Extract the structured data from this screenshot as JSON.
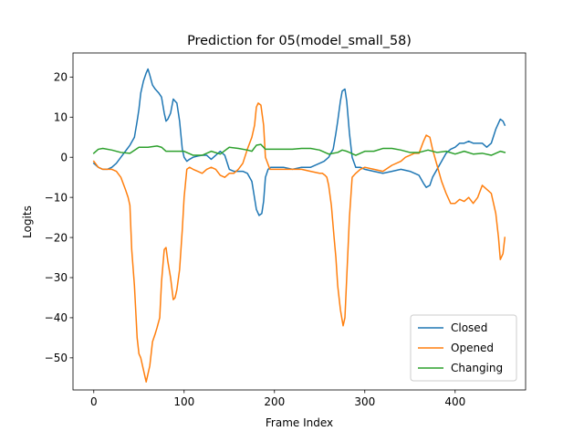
{
  "chart_data": {
    "type": "line",
    "title": "Prediction for 05(model_small_58)",
    "xlabel": "Frame Index",
    "ylabel": "Logits",
    "xlim": [
      -23,
      478
    ],
    "ylim": [
      -58,
      26
    ],
    "xticks": [
      0,
      100,
      200,
      300,
      400
    ],
    "yticks": [
      -50,
      -40,
      -30,
      -20,
      -10,
      0,
      10,
      20
    ],
    "grid": false,
    "legend": "lower-right",
    "series": [
      {
        "name": "Closed",
        "color": "#1f77b4",
        "x": [
          0,
          5,
          10,
          15,
          20,
          25,
          30,
          35,
          40,
          45,
          48,
          50,
          52,
          55,
          58,
          60,
          62,
          65,
          68,
          70,
          72,
          75,
          78,
          80,
          82,
          85,
          88,
          90,
          92,
          95,
          98,
          100,
          103,
          106,
          110,
          115,
          120,
          125,
          130,
          135,
          140,
          145,
          150,
          155,
          160,
          165,
          170,
          175,
          180,
          183,
          186,
          188,
          190,
          193,
          196,
          200,
          210,
          220,
          230,
          240,
          250,
          255,
          260,
          265,
          268,
          270,
          273,
          275,
          278,
          280,
          283,
          286,
          290,
          295,
          300,
          310,
          320,
          330,
          340,
          350,
          360,
          365,
          368,
          372,
          375,
          380,
          385,
          390,
          395,
          400,
          405,
          410,
          415,
          420,
          425,
          430,
          435,
          440,
          445,
          450,
          453,
          455
        ],
        "y": [
          -1.5,
          -2.5,
          -3,
          -3,
          -2.5,
          -1.5,
          0,
          1.5,
          3,
          5,
          9,
          12,
          16,
          19,
          21,
          22,
          20.5,
          18,
          17,
          16.5,
          16,
          15,
          11,
          9,
          9.5,
          11,
          14.5,
          14,
          13.5,
          9,
          2,
          0,
          -1,
          -0.5,
          0,
          0.3,
          0.5,
          0.5,
          -0.5,
          0.5,
          1.5,
          0.5,
          -3,
          -3.5,
          -3.5,
          -3.5,
          -4,
          -6,
          -13,
          -14.5,
          -14,
          -11,
          -5,
          -3,
          -2.5,
          -2.5,
          -2.5,
          -3,
          -2.5,
          -2.5,
          -1.5,
          -1,
          0,
          2,
          6,
          9,
          14,
          16.5,
          17,
          14,
          6,
          0,
          -2.5,
          -2.5,
          -3,
          -3.5,
          -4,
          -3.5,
          -3,
          -3.5,
          -4.5,
          -6.5,
          -7.5,
          -7,
          -5,
          -3,
          -1,
          1,
          2,
          2.5,
          3.5,
          3.5,
          4,
          3.5,
          3.5,
          3.5,
          2.5,
          3.5,
          7,
          9.5,
          9,
          8
        ]
      },
      {
        "name": "Opened",
        "color": "#ff7f0e",
        "x": [
          0,
          5,
          10,
          15,
          20,
          25,
          30,
          35,
          38,
          40,
          42,
          45,
          48,
          50,
          52,
          55,
          58,
          60,
          62,
          65,
          68,
          70,
          73,
          75,
          78,
          80,
          82,
          85,
          88,
          90,
          92,
          95,
          98,
          100,
          103,
          106,
          110,
          115,
          120,
          125,
          130,
          135,
          140,
          145,
          150,
          155,
          160,
          165,
          170,
          175,
          178,
          180,
          182,
          185,
          188,
          190,
          195,
          200,
          210,
          220,
          230,
          240,
          250,
          253,
          256,
          258,
          260,
          263,
          266,
          268,
          270,
          273,
          276,
          278,
          280,
          283,
          286,
          290,
          295,
          300,
          310,
          320,
          330,
          340,
          345,
          350,
          355,
          360,
          365,
          368,
          372,
          375,
          380,
          385,
          390,
          395,
          400,
          405,
          410,
          415,
          420,
          425,
          430,
          435,
          440,
          445,
          448,
          450,
          453,
          455
        ],
        "y": [
          -1,
          -2.5,
          -3,
          -3,
          -3,
          -3.5,
          -5,
          -8,
          -10,
          -12,
          -23,
          -32,
          -45,
          -49,
          -50,
          -53,
          -56,
          -54,
          -52,
          -46,
          -44,
          -42.5,
          -40,
          -31,
          -23,
          -22.5,
          -26,
          -30,
          -35.5,
          -35,
          -33,
          -28,
          -18,
          -10,
          -3,
          -2.5,
          -3,
          -3.5,
          -4,
          -3,
          -2.5,
          -3,
          -4.5,
          -5,
          -4,
          -4,
          -3,
          -1.5,
          2,
          5,
          8,
          12.5,
          13.5,
          13,
          8,
          0,
          -3,
          -3,
          -3,
          -3,
          -3,
          -3.5,
          -4,
          -4,
          -4.5,
          -5,
          -7,
          -12,
          -20,
          -25,
          -32,
          -38,
          -42,
          -40,
          -30,
          -15,
          -5,
          -4,
          -3,
          -2.5,
          -3,
          -3.5,
          -2,
          -1,
          0,
          0.5,
          1,
          1,
          4,
          5.5,
          5,
          2,
          -2,
          -6,
          -9,
          -11.5,
          -11.5,
          -10.5,
          -11,
          -10,
          -11.5,
          -10,
          -7,
          -8,
          -9,
          -14,
          -20,
          -25.5,
          -24,
          -20
        ]
      },
      {
        "name": "Changing",
        "color": "#2ca02c",
        "x": [
          0,
          5,
          10,
          20,
          30,
          40,
          50,
          60,
          70,
          75,
          80,
          90,
          100,
          110,
          120,
          130,
          140,
          150,
          160,
          170,
          175,
          180,
          185,
          190,
          200,
          210,
          220,
          230,
          240,
          250,
          260,
          270,
          275,
          280,
          290,
          300,
          310,
          320,
          330,
          340,
          350,
          360,
          370,
          380,
          390,
          400,
          410,
          420,
          430,
          440,
          450,
          455
        ],
        "y": [
          1,
          2,
          2.2,
          1.8,
          1.2,
          1,
          2.5,
          2.5,
          2.8,
          2.5,
          1.5,
          1.5,
          1.5,
          0.5,
          0.5,
          1.5,
          0.8,
          2.5,
          2.2,
          1.8,
          1.5,
          3,
          3.2,
          2,
          2,
          2,
          2,
          2.2,
          2.2,
          1.8,
          0.8,
          1.2,
          1.8,
          1.5,
          0.5,
          1.5,
          1.5,
          2.2,
          2.2,
          1.8,
          1.2,
          1.2,
          1.8,
          1.2,
          1.5,
          0.8,
          1.5,
          0.8,
          1,
          0.5,
          1.5,
          1.2
        ]
      }
    ]
  }
}
